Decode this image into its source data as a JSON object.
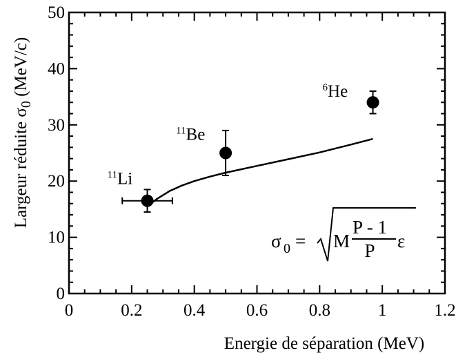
{
  "chart_data": {
    "type": "scatter",
    "title": "",
    "xlabel": "Energie de séparation (MeV)",
    "ylabel_main": "Largeur réduite σ",
    "ylabel_sub": "0",
    "ylabel_unit": "(MeV/c)",
    "xlim": [
      0,
      1.2
    ],
    "ylim": [
      0,
      50
    ],
    "x_ticks": [
      0,
      0.2,
      0.4,
      0.6,
      0.8,
      1,
      1.2
    ],
    "x_tick_labels": [
      "0",
      "0.2",
      "0.4",
      "0.6",
      "0.8",
      "1",
      "1.2"
    ],
    "y_ticks": [
      0,
      10,
      20,
      30,
      40,
      50
    ],
    "y_tick_labels": [
      "0",
      "10",
      "20",
      "30",
      "40",
      "50"
    ],
    "grid": false,
    "points": [
      {
        "x": 0.25,
        "y": 16.5,
        "yerr": 2.0,
        "xerr": 0.08,
        "label_sup": "11",
        "label": "Li"
      },
      {
        "x": 0.5,
        "y": 25.0,
        "yerr": 4.0,
        "xerr": 0,
        "label_sup": "11",
        "label": "Be"
      },
      {
        "x": 0.97,
        "y": 34.0,
        "yerr": 2.0,
        "xerr": 0,
        "label_sup": "6",
        "label": "He"
      }
    ],
    "curve": {
      "x": [
        0.25,
        0.28,
        0.32,
        0.36,
        0.4,
        0.45,
        0.5,
        0.6,
        0.7,
        0.8,
        0.9,
        0.97
      ],
      "y": [
        15.5,
        16.8,
        18.2,
        19.2,
        20.0,
        20.8,
        21.5,
        22.7,
        23.9,
        25.1,
        26.5,
        27.5
      ]
    },
    "formula": {
      "lhs": "σ",
      "lhs_sub": "0",
      "equals": "=",
      "factor": "M",
      "numerator": "P - 1",
      "denominator": "P",
      "epsilon": "ε"
    }
  }
}
